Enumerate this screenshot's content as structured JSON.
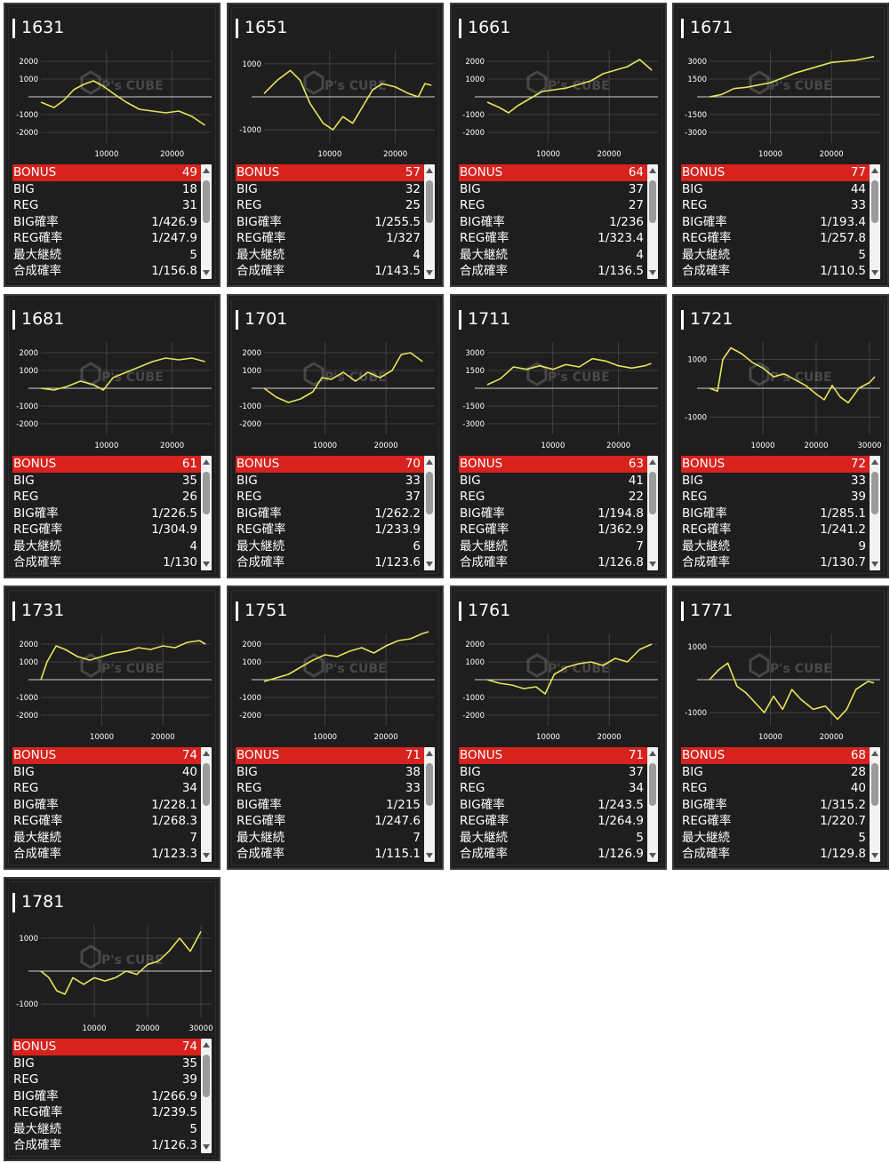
{
  "stat_labels": [
    "BONUS",
    "BIG",
    "REG",
    "BIG確率",
    "REG確率",
    "最大継続",
    "合成確率"
  ],
  "watermark": "P's CUBE",
  "colors": {
    "line": "#e8e25a",
    "bonus": "#d7221d",
    "panel": "#1e1e1e"
  },
  "machines": [
    {
      "id": "1631",
      "bonus": "49",
      "big": "18",
      "reg": "31",
      "big_rate": "1/426.9",
      "reg_rate": "1/247.9",
      "max_streak": "5",
      "combined_rate": "1/156.8",
      "chart_data": {
        "type": "line",
        "yticks": [
          2000,
          1000,
          -1000,
          -2000
        ],
        "xticks": [
          10000,
          20000
        ],
        "ylim": [
          -2600,
          2600
        ],
        "xlim": [
          0,
          26000
        ],
        "values": [
          [
            0,
            -300
          ],
          [
            2000,
            -600
          ],
          [
            3500,
            -200
          ],
          [
            5000,
            400
          ],
          [
            6500,
            700
          ],
          [
            8000,
            900
          ],
          [
            9500,
            600
          ],
          [
            11000,
            200
          ],
          [
            13000,
            -300
          ],
          [
            15000,
            -700
          ],
          [
            17000,
            -800
          ],
          [
            19000,
            -900
          ],
          [
            21000,
            -800
          ],
          [
            23000,
            -1100
          ],
          [
            25000,
            -1600
          ]
        ]
      }
    },
    {
      "id": "1651",
      "bonus": "57",
      "big": "32",
      "reg": "25",
      "big_rate": "1/255.5",
      "reg_rate": "1/327",
      "max_streak": "4",
      "combined_rate": "1/143.5",
      "chart_data": {
        "type": "line",
        "yticks": [
          1000,
          -1000
        ],
        "xticks": [
          10000,
          20000
        ],
        "ylim": [
          -1400,
          1400
        ],
        "xlim": [
          0,
          26000
        ],
        "values": [
          [
            0,
            100
          ],
          [
            2000,
            500
          ],
          [
            4000,
            800
          ],
          [
            5500,
            500
          ],
          [
            7000,
            -200
          ],
          [
            9000,
            -800
          ],
          [
            10500,
            -1000
          ],
          [
            12000,
            -600
          ],
          [
            13500,
            -800
          ],
          [
            15000,
            -300
          ],
          [
            16500,
            200
          ],
          [
            18000,
            400
          ],
          [
            20000,
            300
          ],
          [
            22000,
            100
          ],
          [
            23500,
            0
          ],
          [
            24500,
            400
          ],
          [
            25500,
            350
          ]
        ]
      }
    },
    {
      "id": "1661",
      "bonus": "64",
      "big": "37",
      "reg": "27",
      "big_rate": "1/236",
      "reg_rate": "1/323.4",
      "max_streak": "4",
      "combined_rate": "1/136.5",
      "chart_data": {
        "type": "line",
        "yticks": [
          2000,
          1000,
          -1000,
          -2000
        ],
        "xticks": [
          10000,
          20000
        ],
        "ylim": [
          -2600,
          2600
        ],
        "xlim": [
          0,
          28000
        ],
        "values": [
          [
            0,
            -300
          ],
          [
            2000,
            -600
          ],
          [
            3500,
            -900
          ],
          [
            5000,
            -500
          ],
          [
            7000,
            -100
          ],
          [
            9000,
            300
          ],
          [
            11000,
            400
          ],
          [
            13000,
            500
          ],
          [
            15000,
            700
          ],
          [
            17000,
            900
          ],
          [
            19000,
            1300
          ],
          [
            21000,
            1500
          ],
          [
            23000,
            1700
          ],
          [
            25000,
            2100
          ],
          [
            27000,
            1500
          ]
        ]
      }
    },
    {
      "id": "1671",
      "bonus": "77",
      "big": "44",
      "reg": "33",
      "big_rate": "1/193.4",
      "reg_rate": "1/257.8",
      "max_streak": "5",
      "combined_rate": "1/110.5",
      "chart_data": {
        "type": "line",
        "yticks": [
          3000,
          1500,
          -1500,
          -3000
        ],
        "xticks": [
          10000,
          20000
        ],
        "ylim": [
          -3900,
          3900
        ],
        "xlim": [
          0,
          28000
        ],
        "values": [
          [
            0,
            0
          ],
          [
            2000,
            200
          ],
          [
            4000,
            700
          ],
          [
            6000,
            800
          ],
          [
            8000,
            1000
          ],
          [
            10000,
            1200
          ],
          [
            12000,
            1600
          ],
          [
            14000,
            2000
          ],
          [
            16000,
            2300
          ],
          [
            18000,
            2600
          ],
          [
            20000,
            2900
          ],
          [
            22000,
            3000
          ],
          [
            24000,
            3100
          ],
          [
            26000,
            3300
          ],
          [
            27000,
            3400
          ]
        ]
      }
    },
    {
      "id": "1681",
      "bonus": "61",
      "big": "35",
      "reg": "26",
      "big_rate": "1/226.5",
      "reg_rate": "1/304.9",
      "max_streak": "4",
      "combined_rate": "1/130",
      "chart_data": {
        "type": "line",
        "yticks": [
          2000,
          1000,
          -1000,
          -2000
        ],
        "xticks": [
          10000,
          20000
        ],
        "ylim": [
          -2600,
          2600
        ],
        "xlim": [
          0,
          26000
        ],
        "values": [
          [
            0,
            0
          ],
          [
            2000,
            -100
          ],
          [
            4000,
            100
          ],
          [
            6000,
            400
          ],
          [
            8000,
            200
          ],
          [
            9500,
            -100
          ],
          [
            11000,
            600
          ],
          [
            13000,
            900
          ],
          [
            15000,
            1200
          ],
          [
            17000,
            1500
          ],
          [
            19000,
            1700
          ],
          [
            21000,
            1600
          ],
          [
            23000,
            1700
          ],
          [
            25000,
            1500
          ]
        ]
      }
    },
    {
      "id": "1701",
      "bonus": "70",
      "big": "33",
      "reg": "37",
      "big_rate": "1/262.2",
      "reg_rate": "1/233.9",
      "max_streak": "6",
      "combined_rate": "1/123.6",
      "chart_data": {
        "type": "line",
        "yticks": [
          2000,
          1000,
          -1000,
          -2000
        ],
        "xticks": [
          10000,
          20000
        ],
        "ylim": [
          -2600,
          2600
        ],
        "xlim": [
          0,
          28000
        ],
        "values": [
          [
            0,
            0
          ],
          [
            2000,
            -500
          ],
          [
            4000,
            -800
          ],
          [
            6000,
            -600
          ],
          [
            8000,
            -200
          ],
          [
            9500,
            600
          ],
          [
            11000,
            500
          ],
          [
            13000,
            900
          ],
          [
            15000,
            400
          ],
          [
            17000,
            900
          ],
          [
            19000,
            600
          ],
          [
            21000,
            1000
          ],
          [
            22500,
            1900
          ],
          [
            24000,
            2000
          ],
          [
            26000,
            1500
          ]
        ]
      }
    },
    {
      "id": "1711",
      "bonus": "63",
      "big": "41",
      "reg": "22",
      "big_rate": "1/194.8",
      "reg_rate": "1/362.9",
      "max_streak": "7",
      "combined_rate": "1/126.8",
      "chart_data": {
        "type": "line",
        "yticks": [
          3000,
          1500,
          -1500,
          -3000
        ],
        "xticks": [
          10000,
          20000
        ],
        "ylim": [
          -3900,
          3900
        ],
        "xlim": [
          0,
          26000
        ],
        "values": [
          [
            0,
            300
          ],
          [
            2000,
            800
          ],
          [
            4000,
            1800
          ],
          [
            6000,
            1600
          ],
          [
            8000,
            1900
          ],
          [
            10000,
            1600
          ],
          [
            12000,
            2000
          ],
          [
            14000,
            1800
          ],
          [
            16000,
            2500
          ],
          [
            18000,
            2300
          ],
          [
            20000,
            1900
          ],
          [
            22000,
            1700
          ],
          [
            24000,
            1900
          ],
          [
            25000,
            2100
          ]
        ]
      }
    },
    {
      "id": "1721",
      "bonus": "72",
      "big": "33",
      "reg": "39",
      "big_rate": "1/285.1",
      "reg_rate": "1/241.2",
      "max_streak": "9",
      "combined_rate": "1/130.7",
      "chart_data": {
        "type": "line",
        "yticks": [
          1000,
          -1000
        ],
        "xticks": [
          10000,
          20000,
          30000
        ],
        "ylim": [
          -1600,
          1600
        ],
        "xlim": [
          0,
          32000
        ],
        "values": [
          [
            0,
            0
          ],
          [
            1500,
            -100
          ],
          [
            2500,
            1000
          ],
          [
            4000,
            1400
          ],
          [
            6000,
            1200
          ],
          [
            8000,
            900
          ],
          [
            10000,
            700
          ],
          [
            12000,
            400
          ],
          [
            14000,
            500
          ],
          [
            16000,
            300
          ],
          [
            18000,
            100
          ],
          [
            20000,
            -200
          ],
          [
            21500,
            -400
          ],
          [
            23000,
            100
          ],
          [
            24500,
            -300
          ],
          [
            26000,
            -500
          ],
          [
            28000,
            0
          ],
          [
            30000,
            200
          ],
          [
            31000,
            400
          ]
        ]
      }
    },
    {
      "id": "1731",
      "bonus": "74",
      "big": "40",
      "reg": "34",
      "big_rate": "1/228.1",
      "reg_rate": "1/268.3",
      "max_streak": "7",
      "combined_rate": "1/123.3",
      "chart_data": {
        "type": "line",
        "yticks": [
          2000,
          1000,
          -1000,
          -2000
        ],
        "xticks": [
          10000,
          20000
        ],
        "ylim": [
          -2600,
          2600
        ],
        "xlim": [
          0,
          28000
        ],
        "values": [
          [
            0,
            0
          ],
          [
            1000,
            1000
          ],
          [
            2500,
            1900
          ],
          [
            4000,
            1700
          ],
          [
            6000,
            1300
          ],
          [
            8000,
            1100
          ],
          [
            10000,
            1300
          ],
          [
            12000,
            1500
          ],
          [
            14000,
            1600
          ],
          [
            16000,
            1800
          ],
          [
            18000,
            1700
          ],
          [
            20000,
            1900
          ],
          [
            22000,
            1800
          ],
          [
            24000,
            2100
          ],
          [
            26000,
            2200
          ],
          [
            27000,
            2000
          ]
        ]
      }
    },
    {
      "id": "1751",
      "bonus": "71",
      "big": "38",
      "reg": "33",
      "big_rate": "1/215",
      "reg_rate": "1/247.6",
      "max_streak": "7",
      "combined_rate": "1/115.1",
      "chart_data": {
        "type": "line",
        "yticks": [
          2000,
          1000,
          -1000,
          -2000
        ],
        "xticks": [
          10000,
          20000
        ],
        "ylim": [
          -2600,
          2600
        ],
        "xlim": [
          0,
          28000
        ],
        "values": [
          [
            0,
            -100
          ],
          [
            2000,
            100
          ],
          [
            4000,
            300
          ],
          [
            6000,
            700
          ],
          [
            8000,
            1100
          ],
          [
            10000,
            1400
          ],
          [
            12000,
            1300
          ],
          [
            14000,
            1600
          ],
          [
            16000,
            1800
          ],
          [
            18000,
            1500
          ],
          [
            20000,
            1900
          ],
          [
            22000,
            2200
          ],
          [
            24000,
            2300
          ],
          [
            26000,
            2600
          ],
          [
            27000,
            2700
          ]
        ]
      }
    },
    {
      "id": "1761",
      "bonus": "71",
      "big": "37",
      "reg": "34",
      "big_rate": "1/243.5",
      "reg_rate": "1/264.9",
      "max_streak": "5",
      "combined_rate": "1/126.9",
      "chart_data": {
        "type": "line",
        "yticks": [
          2000,
          1000,
          -1000,
          -2000
        ],
        "xticks": [
          10000,
          20000
        ],
        "ylim": [
          -2600,
          2600
        ],
        "xlim": [
          0,
          28000
        ],
        "values": [
          [
            0,
            0
          ],
          [
            2000,
            -200
          ],
          [
            4000,
            -300
          ],
          [
            6000,
            -500
          ],
          [
            8000,
            -400
          ],
          [
            9500,
            -800
          ],
          [
            11000,
            300
          ],
          [
            13000,
            700
          ],
          [
            15000,
            900
          ],
          [
            17000,
            1000
          ],
          [
            19000,
            800
          ],
          [
            21000,
            1200
          ],
          [
            23000,
            1000
          ],
          [
            25000,
            1700
          ],
          [
            27000,
            2000
          ]
        ]
      }
    },
    {
      "id": "1771",
      "bonus": "68",
      "big": "28",
      "reg": "40",
      "big_rate": "1/315.2",
      "reg_rate": "1/220.7",
      "max_streak": "5",
      "combined_rate": "1/129.8",
      "chart_data": {
        "type": "line",
        "yticks": [
          1000,
          -1000
        ],
        "xticks": [
          10000,
          20000
        ],
        "ylim": [
          -1400,
          1400
        ],
        "xlim": [
          0,
          28000
        ],
        "values": [
          [
            0,
            0
          ],
          [
            1500,
            300
          ],
          [
            3000,
            500
          ],
          [
            4500,
            -200
          ],
          [
            6000,
            -400
          ],
          [
            7500,
            -700
          ],
          [
            9000,
            -1000
          ],
          [
            10500,
            -500
          ],
          [
            12000,
            -900
          ],
          [
            13500,
            -300
          ],
          [
            15000,
            -600
          ],
          [
            17000,
            -900
          ],
          [
            19000,
            -800
          ],
          [
            21000,
            -1200
          ],
          [
            22500,
            -900
          ],
          [
            24000,
            -300
          ],
          [
            26000,
            -50
          ],
          [
            27000,
            -100
          ]
        ]
      }
    },
    {
      "id": "1781",
      "bonus": "74",
      "big": "35",
      "reg": "39",
      "big_rate": "1/266.9",
      "reg_rate": "1/239.5",
      "max_streak": "5",
      "combined_rate": "1/126.3",
      "chart_data": {
        "type": "line",
        "yticks": [
          1000,
          -1000
        ],
        "xticks": [
          10000,
          20000,
          30000
        ],
        "ylim": [
          -1400,
          1400
        ],
        "xlim": [
          0,
          32000
        ],
        "values": [
          [
            0,
            0
          ],
          [
            1500,
            -200
          ],
          [
            3000,
            -600
          ],
          [
            4500,
            -700
          ],
          [
            6000,
            -200
          ],
          [
            8000,
            -400
          ],
          [
            10000,
            -200
          ],
          [
            12000,
            -300
          ],
          [
            14000,
            -200
          ],
          [
            16000,
            0
          ],
          [
            18000,
            -100
          ],
          [
            20000,
            200
          ],
          [
            22000,
            300
          ],
          [
            24000,
            600
          ],
          [
            26000,
            1000
          ],
          [
            28000,
            600
          ],
          [
            30000,
            1200
          ]
        ]
      }
    }
  ]
}
